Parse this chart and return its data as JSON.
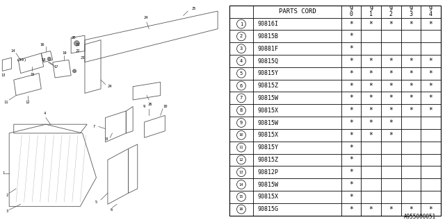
{
  "footnote": "A955000051",
  "table": {
    "rows": [
      [
        "1",
        "90816I",
        "*",
        "*",
        "*",
        "*",
        "*"
      ],
      [
        "2",
        "90815B",
        "*",
        "",
        "",
        "",
        ""
      ],
      [
        "3",
        "90881F",
        "*",
        "",
        "",
        "",
        ""
      ],
      [
        "4",
        "90815Q",
        "*",
        "*",
        "*",
        "*",
        "*"
      ],
      [
        "5",
        "90815Y",
        "*",
        "*",
        "*",
        "*",
        "*"
      ],
      [
        "6",
        "90815Z",
        "*",
        "*",
        "*",
        "*",
        "*"
      ],
      [
        "7",
        "90815W",
        "*",
        "*",
        "*",
        "*",
        "*"
      ],
      [
        "8",
        "90815X",
        "*",
        "*",
        "*",
        "*",
        "*"
      ],
      [
        "9",
        "90815W",
        "*",
        "*",
        "*",
        "",
        ""
      ],
      [
        "10",
        "90815X",
        "*",
        "*",
        "*",
        "",
        ""
      ],
      [
        "11",
        "90815Y",
        "*",
        "",
        "",
        "",
        ""
      ],
      [
        "12",
        "90815Z",
        "*",
        "",
        "",
        "",
        ""
      ],
      [
        "13",
        "90812P",
        "*",
        "",
        "",
        "",
        ""
      ],
      [
        "14",
        "90815W",
        "*",
        "",
        "",
        "",
        ""
      ],
      [
        "15",
        "90815X",
        "*",
        "",
        "",
        "",
        ""
      ],
      [
        "16",
        "90815G",
        "*",
        "*",
        "*",
        "*",
        "*"
      ]
    ]
  },
  "bg_color": "#ffffff",
  "lc": "#444444",
  "diagram_lc": "#555555"
}
